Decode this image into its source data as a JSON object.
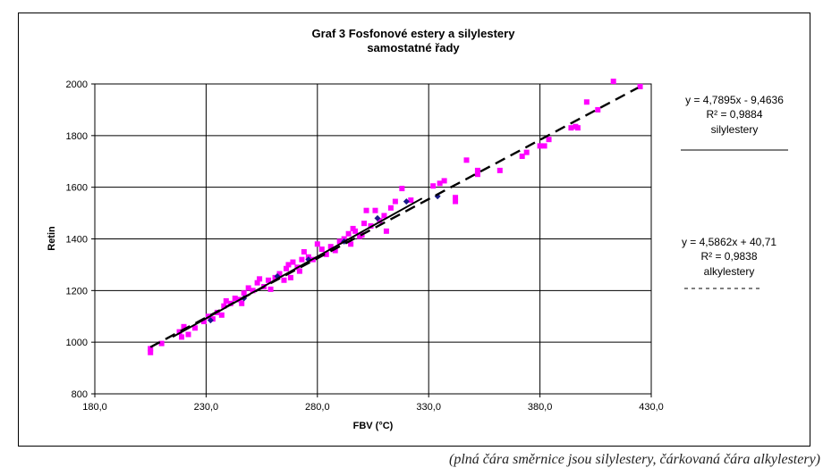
{
  "caption": "(plná čára směrnice jsou silylestery, čárkovaná čára alkylestery)",
  "chart_data": {
    "type": "scatter",
    "title": [
      "Graf 3 Fosfonové estery a silylestery",
      "samostatné řady"
    ],
    "xlabel": "FBV (°C)",
    "ylabel": "Retin",
    "xlim": [
      180,
      430
    ],
    "ylim": [
      800,
      2000
    ],
    "xticks": [
      180,
      230,
      280,
      330,
      380,
      430
    ],
    "xtick_labels": [
      "180,0",
      "230,0",
      "280,0",
      "330,0",
      "380,0",
      "430,0"
    ],
    "yticks": [
      800,
      1000,
      1200,
      1400,
      1600,
      1800,
      2000
    ],
    "ytick_labels": [
      "800",
      "1000",
      "1200",
      "1400",
      "1600",
      "1800",
      "2000"
    ],
    "grid": true,
    "colors": {
      "alkyl": "#ff00ff",
      "silyl": "#1a1a8c",
      "line": "#000000"
    },
    "series": [
      {
        "name": "alkylestery",
        "marker": "square",
        "points": [
          [
            205,
            960
          ],
          [
            205,
            975
          ],
          [
            210,
            995
          ],
          [
            218,
            1040
          ],
          [
            219,
            1020
          ],
          [
            220,
            1060
          ],
          [
            222,
            1030
          ],
          [
            225,
            1055
          ],
          [
            229,
            1080
          ],
          [
            231,
            1100
          ],
          [
            233,
            1090
          ],
          [
            235,
            1115
          ],
          [
            237,
            1105
          ],
          [
            238,
            1140
          ],
          [
            239,
            1160
          ],
          [
            241,
            1150
          ],
          [
            243,
            1170
          ],
          [
            245,
            1165
          ],
          [
            246,
            1150
          ],
          [
            247,
            1190
          ],
          [
            249,
            1210
          ],
          [
            251,
            1200
          ],
          [
            253,
            1230
          ],
          [
            254,
            1245
          ],
          [
            256,
            1215
          ],
          [
            258,
            1240
          ],
          [
            259,
            1205
          ],
          [
            261,
            1250
          ],
          [
            263,
            1265
          ],
          [
            265,
            1240
          ],
          [
            266,
            1285
          ],
          [
            267,
            1300
          ],
          [
            268,
            1250
          ],
          [
            269,
            1310
          ],
          [
            271,
            1290
          ],
          [
            272,
            1275
          ],
          [
            273,
            1320
          ],
          [
            274,
            1350
          ],
          [
            276,
            1330
          ],
          [
            278,
            1320
          ],
          [
            280,
            1380
          ],
          [
            282,
            1360
          ],
          [
            284,
            1340
          ],
          [
            286,
            1370
          ],
          [
            288,
            1355
          ],
          [
            290,
            1390
          ],
          [
            292,
            1400
          ],
          [
            294,
            1420
          ],
          [
            295,
            1380
          ],
          [
            296,
            1440
          ],
          [
            297,
            1430
          ],
          [
            299,
            1410
          ],
          [
            300,
            1415
          ],
          [
            301,
            1460
          ],
          [
            302,
            1510
          ],
          [
            304,
            1450
          ],
          [
            306,
            1510
          ],
          [
            308,
            1470
          ],
          [
            310,
            1490
          ],
          [
            311,
            1430
          ],
          [
            313,
            1520
          ],
          [
            315,
            1545
          ],
          [
            318,
            1595
          ],
          [
            322,
            1550
          ],
          [
            332,
            1605
          ],
          [
            335,
            1615
          ],
          [
            337,
            1625
          ],
          [
            342,
            1545
          ],
          [
            342,
            1560
          ],
          [
            347,
            1705
          ],
          [
            352,
            1650
          ],
          [
            352,
            1665
          ],
          [
            362,
            1665
          ],
          [
            372,
            1720
          ],
          [
            374,
            1735
          ],
          [
            380,
            1760
          ],
          [
            382,
            1760
          ],
          [
            384,
            1785
          ],
          [
            394,
            1830
          ],
          [
            396,
            1835
          ],
          [
            397,
            1830
          ],
          [
            401,
            1930
          ],
          [
            406,
            1900
          ],
          [
            413,
            2010
          ],
          [
            425,
            1990
          ]
        ]
      },
      {
        "name": "silylestery",
        "marker": "diamond",
        "points": [
          [
            232,
            1085
          ],
          [
            247,
            1170
          ],
          [
            262,
            1255
          ],
          [
            276,
            1320
          ],
          [
            292,
            1390
          ],
          [
            307,
            1480
          ],
          [
            320,
            1545
          ],
          [
            334,
            1565
          ]
        ]
      }
    ],
    "fits": [
      {
        "series": "silylestery",
        "style": "solid",
        "slope": 4.7895,
        "intercept": -9.4636,
        "x_range": [
          215,
          327
        ],
        "equation": "y = 4,7895x - 9,4636",
        "r2": "R² = 0,9884",
        "label": "silylestery",
        "legend_line": "solid"
      },
      {
        "series": "alkylestery",
        "style": "dashed",
        "slope": 4.5862,
        "intercept": 40.71,
        "x_range": [
          205,
          424
        ],
        "equation": "y = 4,5862x + 40,71",
        "r2": "R² = 0,9838",
        "label": "alkylestery",
        "legend_line": "dashed"
      }
    ]
  }
}
